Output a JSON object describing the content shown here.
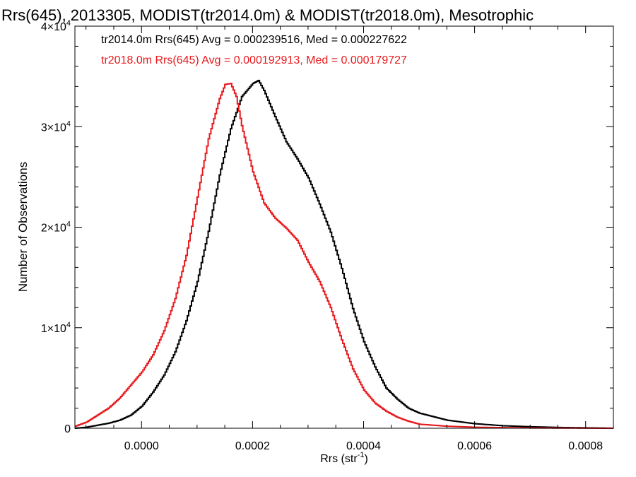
{
  "chart_data": {
    "type": "line",
    "title": "Rrs(645), 2013305, MODIST(tr2014.0m) & MODIST(tr2018.0m), Mesotrophic",
    "xlabel": "Rrs (str",
    "xlabel_sup": "-1",
    "xlabel_end": ")",
    "ylabel": "Number of Observations",
    "xlim": [
      -0.00012,
      0.00085
    ],
    "ylim": [
      0,
      40000
    ],
    "grid": false,
    "x_ticks": [
      0.0,
      0.0002,
      0.0004,
      0.0006,
      0.0008
    ],
    "x_tick_labels": [
      "0.0000",
      "0.0002",
      "0.0004",
      "0.0006",
      "0.0008"
    ],
    "y_ticks": [
      0,
      10000,
      20000,
      30000,
      40000
    ],
    "y_tick_labels": [
      {
        "base": "0",
        "exp": ""
      },
      {
        "base": "1×10",
        "exp": "4"
      },
      {
        "base": "2×10",
        "exp": "4"
      },
      {
        "base": "3×10",
        "exp": "4"
      },
      {
        "base": "4×10",
        "exp": "4"
      }
    ],
    "annotations": [
      {
        "text": "tr2014.0m Rrs(645) Avg = 0.000239516, Med = 0.000227622",
        "color": "#000000"
      },
      {
        "text": "tr2018.0m Rrs(645) Avg = 0.000192913, Med = 0.000179727",
        "color": "#e8181c"
      }
    ],
    "series": [
      {
        "color": "#000000",
        "x": [
          -0.00012,
          -0.0001,
          -8e-05,
          -6e-05,
          -4e-05,
          -2e-05,
          0.0,
          2e-05,
          4e-05,
          6e-05,
          8e-05,
          0.0001,
          0.00012,
          0.00014,
          0.00016,
          0.00018,
          0.0002,
          0.00021,
          0.00022,
          0.00024,
          0.00026,
          0.00028,
          0.0003,
          0.00032,
          0.00034,
          0.00036,
          0.00038,
          0.0004,
          0.00042,
          0.00044,
          0.00046,
          0.00048,
          0.0005,
          0.00055,
          0.0006,
          0.00065,
          0.0007,
          0.00075,
          0.0008,
          0.00085
        ],
        "y": [
          0,
          100,
          300,
          500,
          800,
          1300,
          2200,
          3600,
          5300,
          7600,
          10700,
          14600,
          19600,
          25200,
          29800,
          33000,
          34300,
          34600,
          33600,
          31000,
          28500,
          26800,
          24900,
          22300,
          19500,
          15900,
          11900,
          8600,
          6100,
          4000,
          2900,
          2000,
          1500,
          800,
          450,
          250,
          150,
          80,
          40,
          0
        ]
      },
      {
        "color": "#e8181c",
        "x": [
          -0.00012,
          -0.0001,
          -8e-05,
          -6e-05,
          -4e-05,
          -2e-05,
          0.0,
          2e-05,
          4e-05,
          6e-05,
          8e-05,
          0.0001,
          0.00012,
          0.00014,
          0.00015,
          0.00016,
          0.00017,
          0.00018,
          0.0002,
          0.00022,
          0.00024,
          0.00026,
          0.00028,
          0.0003,
          0.00032,
          0.00034,
          0.00036,
          0.00038,
          0.0004,
          0.00042,
          0.00044,
          0.00046,
          0.00048,
          0.0005,
          0.00055,
          0.0006,
          0.00065,
          0.0007,
          0.0008,
          0.00085
        ],
        "y": [
          200,
          600,
          1300,
          2000,
          3000,
          4300,
          5600,
          7300,
          9700,
          12900,
          17200,
          23000,
          28800,
          32800,
          34200,
          34300,
          33000,
          30100,
          25500,
          22400,
          20900,
          19900,
          18700,
          16500,
          14600,
          12000,
          8800,
          5900,
          3800,
          2500,
          1700,
          1100,
          700,
          400,
          200,
          100,
          60,
          30,
          10,
          0
        ]
      }
    ]
  }
}
